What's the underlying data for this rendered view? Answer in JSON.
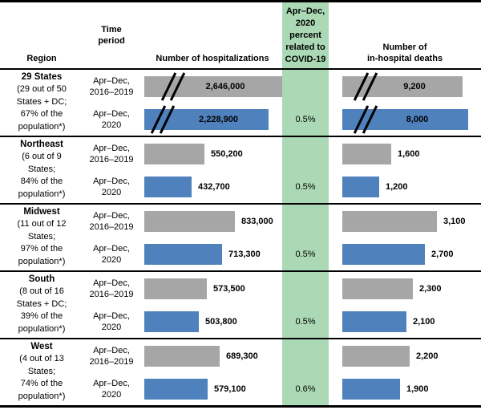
{
  "header": {
    "region": "Region",
    "time_period": "Time\nperiod",
    "hospitalizations": "Number of hospitalizations",
    "covid_percent": "Apr–Dec,\n2020\npercent\nrelated to\nCOVID-19",
    "deaths": "Number of\nin-hospital deaths"
  },
  "colors": {
    "bar_2016_2019": "#a6a6a6",
    "bar_2020": "#4f81bd",
    "covid_column_background": "#abd9b5",
    "border": "#000000"
  },
  "chart_data": {
    "type": "bar",
    "orientation": "horizontal",
    "title": "",
    "categories": [
      "29 States",
      "Northeast",
      "Midwest",
      "South",
      "West"
    ],
    "category_details": [
      "29 out of 50 States + DC; 67% of the population*",
      "6 out of 9 States; 84% of the population*",
      "11 out of 12 States; 97% of the population*",
      "8 out of 16 States + DC; 39% of the population*",
      "4 out of 13 States; 74% of the population*"
    ],
    "measures": [
      "Number of hospitalizations",
      "Number of in-hospital deaths"
    ],
    "series": [
      {
        "name": "Apr–Dec, 2016–2019",
        "color": "#a6a6a6",
        "hospitalizations": [
          2646000,
          550200,
          833000,
          573500,
          689300
        ],
        "in_hospital_deaths": [
          9200,
          1600,
          3100,
          2300,
          2200
        ]
      },
      {
        "name": "Apr–Dec, 2020",
        "color": "#4f81bd",
        "hospitalizations": [
          2228900,
          432700,
          713300,
          503800,
          579100
        ],
        "in_hospital_deaths": [
          8000,
          1200,
          2700,
          2100,
          1900
        ]
      }
    ],
    "covid_percent_apr_dec_2020": [
      "0.5%",
      "0.5%",
      "0.5%",
      "0.5%",
      "0.6%"
    ],
    "axis_break_categories": [
      "29 States"
    ]
  },
  "sections": [
    {
      "region_name": "29 States",
      "region_detail": "(29 out of 50\nStates + DC;\n67% of the\npopulation*)",
      "rows": [
        {
          "period": "Apr–Dec,\n2016–2019",
          "hosp": {
            "value": 2646000,
            "label": "2,646,000",
            "broken": true
          },
          "deaths": {
            "value": 9200,
            "label": "9,200",
            "broken": true
          },
          "percent": ""
        },
        {
          "period": "Apr–Dec,\n2020",
          "hosp": {
            "value": 2228900,
            "label": "2,228,900",
            "broken": true
          },
          "deaths": {
            "value": 8000,
            "label": "8,000",
            "broken": true
          },
          "percent": "0.5%"
        }
      ]
    },
    {
      "region_name": "Northeast",
      "region_detail": "(6 out of 9\nStates;\n84% of the\npopulation*)",
      "rows": [
        {
          "period": "Apr–Dec,\n2016–2019",
          "hosp": {
            "value": 550200,
            "label": "550,200",
            "broken": false
          },
          "deaths": {
            "value": 1600,
            "label": "1,600",
            "broken": false
          },
          "percent": ""
        },
        {
          "period": "Apr–Dec,\n2020",
          "hosp": {
            "value": 432700,
            "label": "432,700",
            "broken": false
          },
          "deaths": {
            "value": 1200,
            "label": "1,200",
            "broken": false
          },
          "percent": "0.5%"
        }
      ]
    },
    {
      "region_name": "Midwest",
      "region_detail": "(11 out of 12\nStates;\n97% of the\npopulation*)",
      "rows": [
        {
          "period": "Apr–Dec,\n2016–2019",
          "hosp": {
            "value": 833000,
            "label": "833,000",
            "broken": false
          },
          "deaths": {
            "value": 3100,
            "label": "3,100",
            "broken": false
          },
          "percent": ""
        },
        {
          "period": "Apr–Dec,\n2020",
          "hosp": {
            "value": 713300,
            "label": "713,300",
            "broken": false
          },
          "deaths": {
            "value": 2700,
            "label": "2,700",
            "broken": false
          },
          "percent": "0.5%"
        }
      ]
    },
    {
      "region_name": "South",
      "region_detail": "(8 out of 16\nStates + DC;\n39% of the\npopulation*)",
      "rows": [
        {
          "period": "Apr–Dec,\n2016–2019",
          "hosp": {
            "value": 573500,
            "label": "573,500",
            "broken": false
          },
          "deaths": {
            "value": 2300,
            "label": "2,300",
            "broken": false
          },
          "percent": ""
        },
        {
          "period": "Apr–Dec,\n2020",
          "hosp": {
            "value": 503800,
            "label": "503,800",
            "broken": false
          },
          "deaths": {
            "value": 2100,
            "label": "2,100",
            "broken": false
          },
          "percent": "0.5%"
        }
      ]
    },
    {
      "region_name": "West",
      "region_detail": "(4 out of 13\nStates;\n74% of the\npopulation*)",
      "rows": [
        {
          "period": "Apr–Dec,\n2016–2019",
          "hosp": {
            "value": 689300,
            "label": "689,300",
            "broken": false
          },
          "deaths": {
            "value": 2200,
            "label": "2,200",
            "broken": false
          },
          "percent": ""
        },
        {
          "period": "Apr–Dec,\n2020",
          "hosp": {
            "value": 579100,
            "label": "579,100",
            "broken": false
          },
          "deaths": {
            "value": 1900,
            "label": "1,900",
            "broken": false
          },
          "percent": "0.6%"
        }
      ]
    }
  ]
}
